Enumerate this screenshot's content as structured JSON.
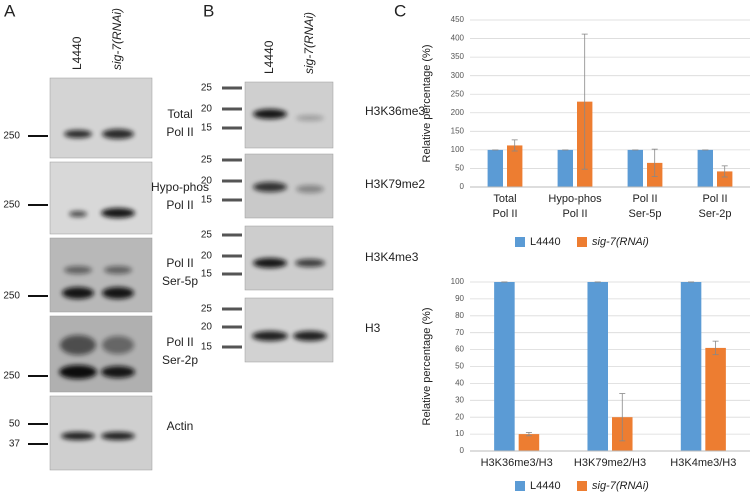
{
  "panel_labels": [
    "A",
    "B",
    "C"
  ],
  "blot_a": {
    "lanes": [
      "L4440",
      "sig-7(RNAi)"
    ],
    "rows": [
      {
        "markers": [
          250
        ],
        "label": [
          "Total",
          "Pol II"
        ]
      },
      {
        "markers": [
          250
        ],
        "label": [
          "Hypo-phos",
          "Pol II"
        ]
      },
      {
        "markers": [
          250
        ],
        "label": [
          "Pol II",
          "Ser-5p"
        ]
      },
      {
        "markers": [
          250
        ],
        "label": [
          "Pol II",
          "Ser-2p"
        ]
      },
      {
        "markers": [
          50,
          37
        ],
        "label": [
          "Actin"
        ]
      }
    ]
  },
  "blot_b": {
    "lanes": [
      "L4440",
      "sig-7(RNAi)"
    ],
    "rows": [
      {
        "markers": [
          25,
          20,
          15
        ],
        "label": [
          "H3K36me3"
        ]
      },
      {
        "markers": [
          25,
          20,
          15
        ],
        "label": [
          "H3K79me2"
        ]
      },
      {
        "markers": [
          25,
          20,
          15
        ],
        "label": [
          "H3K4me3"
        ]
      },
      {
        "markers": [
          25,
          20,
          15
        ],
        "label": [
          "H3"
        ]
      }
    ]
  },
  "chart_data": [
    {
      "type": "bar",
      "y_label": "Relative percentage (%)",
      "categories": [
        [
          "Total",
          "Pol II"
        ],
        [
          "Hypo-phos",
          "Pol II"
        ],
        [
          "Pol II",
          "Ser-5p"
        ],
        [
          "Pol II",
          "Ser-2p"
        ]
      ],
      "series": [
        {
          "name": "L4440",
          "color": "#5b9bd5",
          "values": [
            100,
            100,
            100,
            100
          ],
          "errors": [
            0,
            0,
            0,
            0
          ]
        },
        {
          "name": "sig-7(RNAi)",
          "color": "#ed7d31",
          "values": [
            112,
            230,
            65,
            42
          ],
          "errors": [
            15,
            182,
            37,
            15
          ]
        }
      ],
      "ylim": [
        0,
        450
      ],
      "yticks": [
        0,
        50,
        100,
        150,
        200,
        250,
        300,
        350,
        400,
        450
      ],
      "grid": true
    },
    {
      "type": "bar",
      "y_label": "Relative percentage (%)",
      "categories": [
        [
          "H3K36me3/H3"
        ],
        [
          "H3K79me2/H3"
        ],
        [
          "H3K4me3/H3"
        ]
      ],
      "series": [
        {
          "name": "L4440",
          "color": "#5b9bd5",
          "values": [
            100,
            100,
            100
          ],
          "errors": [
            0,
            0,
            0
          ]
        },
        {
          "name": "sig-7(RNAi)",
          "color": "#ed7d31",
          "values": [
            10,
            20,
            61
          ],
          "errors": [
            1,
            14,
            4
          ]
        }
      ],
      "ylim": [
        0,
        100
      ],
      "yticks": [
        0,
        10,
        20,
        30,
        40,
        50,
        60,
        70,
        80,
        90,
        100
      ],
      "grid": true
    }
  ]
}
